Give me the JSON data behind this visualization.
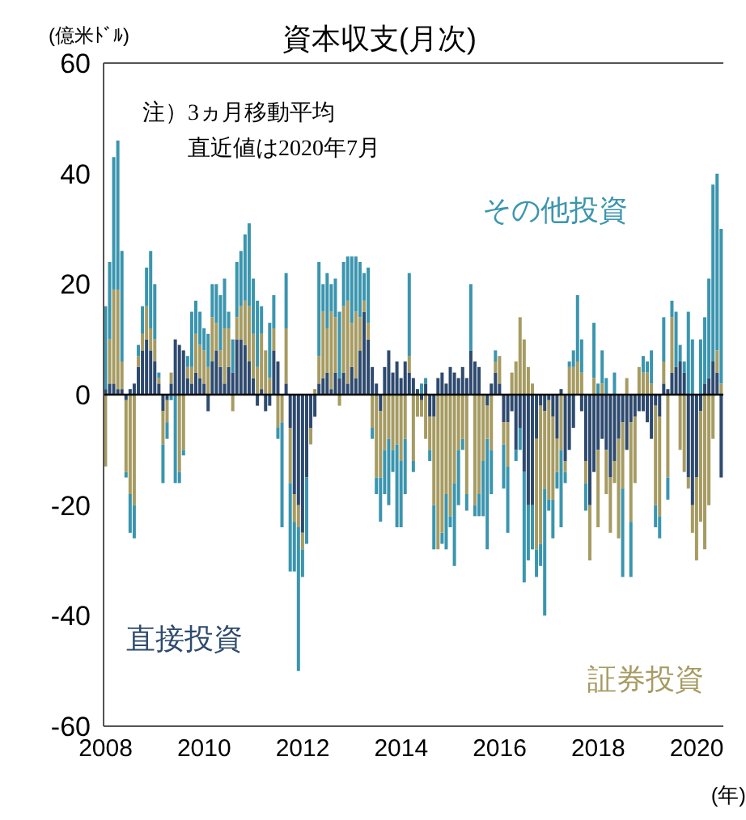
{
  "chart_data": {
    "type": "bar",
    "title": "資本収支(月次)",
    "ylabel": "(億米ﾄﾞﾙ)",
    "xlabel": "(年)",
    "stacked": true,
    "legend": false,
    "grid": false,
    "annotations": [
      "注）3ヵ月移動平均",
      "直近値は2020年7月"
    ],
    "ylim": [
      -60,
      60
    ],
    "yticks": [
      -60,
      -40,
      -20,
      0,
      20,
      40,
      60
    ],
    "ref_lines": [
      {
        "axis": "y",
        "value": 0,
        "color": "#000000"
      }
    ],
    "categories": [
      "2008",
      null,
      null,
      null,
      null,
      null,
      null,
      null,
      null,
      null,
      null,
      null,
      null,
      null,
      null,
      null,
      null,
      null,
      null,
      null,
      null,
      null,
      null,
      null,
      "2010",
      null,
      null,
      null,
      null,
      null,
      null,
      null,
      null,
      null,
      null,
      null,
      null,
      null,
      null,
      null,
      null,
      null,
      null,
      null,
      null,
      null,
      null,
      null,
      "2012",
      null,
      null,
      null,
      null,
      null,
      null,
      null,
      null,
      null,
      null,
      null,
      null,
      null,
      null,
      null,
      null,
      null,
      null,
      null,
      null,
      null,
      null,
      null,
      "2014",
      null,
      null,
      null,
      null,
      null,
      null,
      null,
      null,
      null,
      null,
      null,
      null,
      null,
      null,
      null,
      null,
      null,
      null,
      null,
      null,
      null,
      null,
      null,
      "2016",
      null,
      null,
      null,
      null,
      null,
      null,
      null,
      null,
      null,
      null,
      null,
      null,
      null,
      null,
      null,
      null,
      null,
      null,
      null,
      null,
      null,
      null,
      null,
      "2018",
      null,
      null,
      null,
      null,
      null,
      null,
      null,
      null,
      null,
      null,
      null,
      null,
      null,
      null,
      null,
      null,
      null,
      null,
      null,
      null,
      null,
      null,
      null,
      "2020",
      null,
      null,
      null,
      null,
      null,
      null
    ],
    "series": [
      {
        "name": "直接投資",
        "color": "#2e4a6e",
        "values": [
          1,
          2,
          2,
          1,
          1,
          -1,
          1,
          2,
          5,
          8,
          10,
          8,
          6,
          2,
          -3,
          -1,
          2,
          10,
          9,
          8,
          3,
          2,
          4,
          3,
          2,
          -3,
          6,
          8,
          5,
          2,
          5,
          4,
          10,
          10,
          9,
          6,
          3,
          -2,
          1,
          -3,
          -2,
          8,
          6,
          0,
          2,
          -6,
          -18,
          -20,
          -25,
          -15,
          -6,
          -4,
          2,
          3,
          4,
          1,
          4,
          3,
          4,
          2,
          5,
          3,
          8,
          15,
          10,
          5,
          2,
          -3,
          5,
          8,
          4,
          6,
          3,
          6,
          4,
          3,
          1,
          -1,
          2,
          -4,
          -4,
          3,
          4,
          2,
          5,
          4,
          3,
          5,
          3,
          8,
          6,
          5,
          0,
          -2,
          2,
          4,
          2,
          -5,
          -5,
          -3,
          -10,
          -6,
          -14,
          -20,
          -20,
          -8,
          -2,
          -3,
          -1,
          -4,
          -8,
          1,
          -12,
          -10,
          -6,
          0,
          -3,
          -12,
          -20,
          -14,
          -10,
          -8,
          -10,
          -15,
          -12,
          -8,
          -5,
          -10,
          -5,
          -4,
          -3,
          -3,
          -5,
          -8,
          -2,
          -4,
          2,
          1,
          4,
          5,
          6,
          4,
          -15,
          -20,
          -15,
          -3,
          2,
          3,
          6,
          4,
          -15
        ]
      },
      {
        "name": "証券投資",
        "color": "#a69b62",
        "values": [
          -13,
          8,
          17,
          18,
          5,
          -13,
          -18,
          -20,
          2,
          3,
          6,
          4,
          4,
          1,
          -6,
          -4,
          2,
          0,
          -14,
          -10,
          2,
          3,
          7,
          6,
          6,
          5,
          8,
          5,
          3,
          10,
          7,
          -3,
          4,
          6,
          8,
          10,
          8,
          5,
          10,
          8,
          3,
          4,
          -6,
          -5,
          10,
          -10,
          -5,
          -4,
          -3,
          0,
          -3,
          1,
          5,
          12,
          8,
          14,
          10,
          -2,
          12,
          15,
          8,
          12,
          6,
          2,
          3,
          -6,
          -15,
          -12,
          -10,
          -8,
          -10,
          -9,
          -12,
          -8,
          3,
          -12,
          -4,
          -3,
          -8,
          -6,
          -16,
          -28,
          -25,
          -18,
          -22,
          -16,
          -10,
          -8,
          -18,
          0,
          -20,
          -18,
          -12,
          -6,
          -10,
          2,
          5,
          -4,
          -8,
          4,
          6,
          14,
          10,
          5,
          2,
          -20,
          -25,
          -14,
          -18,
          -15,
          -6,
          -10,
          -2,
          5,
          5,
          6,
          4,
          -4,
          -10,
          3,
          -14,
          2,
          -8,
          -10,
          -4,
          -18,
          -12,
          3,
          -18,
          -12,
          5,
          4,
          4,
          2,
          -18,
          -18,
          4,
          -15,
          10,
          0,
          -10,
          -14,
          -2,
          -5,
          -15,
          -20,
          -28,
          -20,
          -8,
          4,
          2
        ]
      },
      {
        "name": "その他投資",
        "color": "#3b95ae",
        "values": [
          15,
          14,
          24,
          27,
          20,
          -1,
          -7,
          -6,
          2,
          5,
          7,
          14,
          10,
          1,
          -7,
          -3,
          -1,
          -16,
          -2,
          -1,
          2,
          10,
          6,
          6,
          4,
          6,
          6,
          7,
          10,
          9,
          3,
          6,
          10,
          10,
          12,
          15,
          10,
          12,
          5,
          0,
          10,
          6,
          -2,
          -19,
          10,
          -16,
          -9,
          -26,
          -5,
          -12,
          0,
          0,
          17,
          5,
          10,
          5,
          7,
          12,
          8,
          8,
          12,
          10,
          10,
          5,
          10,
          -2,
          -3,
          -8,
          -8,
          -12,
          -4,
          -15,
          -12,
          -10,
          15,
          -2,
          0,
          2,
          1,
          -2,
          -8,
          0,
          -2,
          -10,
          -2,
          -15,
          -10,
          -2,
          -3,
          12,
          -2,
          -4,
          -10,
          -20,
          -8,
          2,
          0,
          -8,
          -12,
          0,
          -2,
          -4,
          -20,
          -10,
          -8,
          -5,
          -4,
          -23,
          -2,
          -7,
          -3,
          -14,
          -2,
          1,
          3,
          12,
          6,
          -5,
          0,
          10,
          2,
          6,
          3,
          0,
          4,
          0,
          -16,
          0,
          -10,
          0,
          0,
          3,
          2,
          6,
          -4,
          -4,
          8,
          -4,
          3,
          10,
          3,
          2,
          15,
          10,
          0,
          10,
          12,
          18,
          32,
          32,
          28
        ]
      }
    ]
  }
}
